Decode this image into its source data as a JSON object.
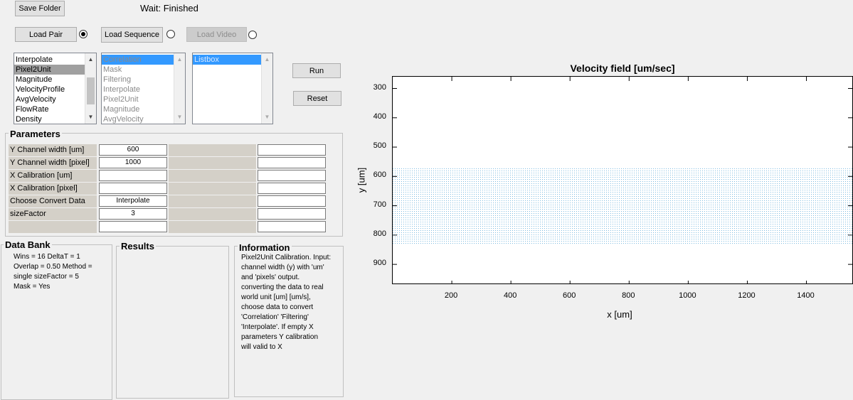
{
  "toolbar": {
    "save_folder": "Save Folder",
    "status": "Wait:  Finished",
    "load_pair": "Load Pair",
    "load_sequence": "Load Sequence",
    "load_video": "Load Video",
    "run": "Run",
    "reset": "Reset"
  },
  "list1": {
    "items": [
      "Interpolate",
      "Pixel2Unit",
      "Magnitude",
      "VelocityProfile",
      "AvgVelocity",
      "FlowRate",
      "Density"
    ],
    "selected_index": 1
  },
  "list2": {
    "items": [
      "Correlation",
      "Mask",
      "Filtering",
      "Interpolate",
      "Pixel2Unit",
      "Magnitude",
      "AvgVelocity"
    ],
    "selected_index": 0
  },
  "list3": {
    "items": [
      "Listbox"
    ],
    "selected_index": 0
  },
  "parameters": {
    "title": "Parameters",
    "rows": [
      {
        "label": "Y Channel width [um]",
        "value": "600"
      },
      {
        "label": "Y Channel width [pixel]",
        "value": "1000"
      },
      {
        "label": "X Calibration [um]",
        "value": ""
      },
      {
        "label": "X Calibration [pixel]",
        "value": ""
      },
      {
        "label": "Choose Convert Data",
        "value": "Interpolate"
      },
      {
        "label": "sizeFactor",
        "value": "3"
      },
      {
        "label": "",
        "value": ""
      }
    ]
  },
  "data_bank": {
    "title": "Data Bank",
    "lines": [
      "Wins = 16  DeltaT = 1",
      "Overlap = 0.50  Method =",
      "single  sizeFactor = 5",
      "Mask = Yes"
    ]
  },
  "results": {
    "title": "Results"
  },
  "information": {
    "title": "Information",
    "lines": [
      "Pixel2Unit Calibration. Input:",
      "channel width (y) with 'um'",
      "and 'pixels' output.",
      "converting the data to real",
      "world unit [um] [um/s],",
      "choose data to convert",
      "'Correlation' 'Filtering'",
      "'Interpolate'. If empty X",
      "parameters Y calibration",
      "will valid to X"
    ]
  },
  "chart_data": {
    "type": "scatter",
    "title": "Velocity field [um/sec]",
    "xlabel": "x [um]",
    "ylabel": "y [um]",
    "xlim": [
      0,
      1560
    ],
    "ylim": [
      260,
      970
    ],
    "y_reversed": true,
    "xticks": [
      200,
      400,
      600,
      800,
      1000,
      1200,
      1400
    ],
    "yticks": [
      300,
      400,
      500,
      600,
      700,
      800,
      900
    ],
    "band": {
      "x_range": [
        0,
        1560
      ],
      "y_range": [
        570,
        830
      ]
    },
    "color": "#4fa3d6"
  }
}
